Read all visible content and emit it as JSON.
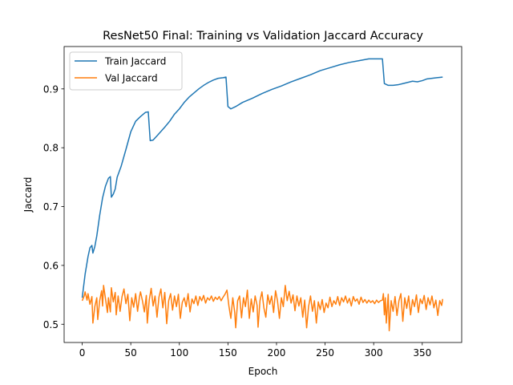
{
  "chart_data": {
    "type": "line",
    "title": "ResNet50 Final: Training vs Validation Jaccard Accuracy",
    "xlabel": "Epoch",
    "ylabel": "Jaccard",
    "xlim": [
      -18.6,
      390.6
    ],
    "ylim": [
      0.469,
      0.972
    ],
    "xticks": [
      0,
      50,
      100,
      150,
      200,
      250,
      300,
      350
    ],
    "yticks": [
      0.5,
      0.6,
      0.7,
      0.8,
      0.9
    ],
    "ytick_labels": [
      "0.5",
      "0.6",
      "0.7",
      "0.8",
      "0.9"
    ],
    "grid": false,
    "legend_position": "top-left",
    "series": [
      {
        "name": "Train Jaccard",
        "color": "#1f77b4",
        "points": [
          [
            0,
            0.545
          ],
          [
            3,
            0.585
          ],
          [
            6,
            0.615
          ],
          [
            8,
            0.63
          ],
          [
            10,
            0.634
          ],
          [
            11,
            0.621
          ],
          [
            13,
            0.632
          ],
          [
            15,
            0.65
          ],
          [
            18,
            0.685
          ],
          [
            21,
            0.715
          ],
          [
            24,
            0.735
          ],
          [
            27,
            0.748
          ],
          [
            29,
            0.751
          ],
          [
            30,
            0.716
          ],
          [
            32,
            0.721
          ],
          [
            34,
            0.73
          ],
          [
            36,
            0.75
          ],
          [
            40,
            0.768
          ],
          [
            45,
            0.797
          ],
          [
            50,
            0.827
          ],
          [
            55,
            0.845
          ],
          [
            60,
            0.853
          ],
          [
            65,
            0.86
          ],
          [
            68,
            0.861
          ],
          [
            70,
            0.812
          ],
          [
            73,
            0.813
          ],
          [
            78,
            0.822
          ],
          [
            85,
            0.835
          ],
          [
            90,
            0.845
          ],
          [
            95,
            0.857
          ],
          [
            100,
            0.866
          ],
          [
            105,
            0.877
          ],
          [
            110,
            0.886
          ],
          [
            115,
            0.893
          ],
          [
            120,
            0.9
          ],
          [
            125,
            0.906
          ],
          [
            130,
            0.911
          ],
          [
            135,
            0.915
          ],
          [
            140,
            0.918
          ],
          [
            145,
            0.919
          ],
          [
            148,
            0.92
          ],
          [
            150,
            0.87
          ],
          [
            153,
            0.866
          ],
          [
            158,
            0.87
          ],
          [
            165,
            0.877
          ],
          [
            175,
            0.884
          ],
          [
            185,
            0.892
          ],
          [
            195,
            0.899
          ],
          [
            205,
            0.905
          ],
          [
            215,
            0.912
          ],
          [
            225,
            0.918
          ],
          [
            235,
            0.924
          ],
          [
            245,
            0.931
          ],
          [
            255,
            0.936
          ],
          [
            265,
            0.941
          ],
          [
            275,
            0.945
          ],
          [
            285,
            0.948
          ],
          [
            295,
            0.951
          ],
          [
            305,
            0.951
          ],
          [
            309,
            0.951
          ],
          [
            311,
            0.909
          ],
          [
            315,
            0.906
          ],
          [
            320,
            0.906
          ],
          [
            325,
            0.907
          ],
          [
            330,
            0.909
          ],
          [
            335,
            0.911
          ],
          [
            340,
            0.913
          ],
          [
            345,
            0.912
          ],
          [
            350,
            0.914
          ],
          [
            355,
            0.917
          ],
          [
            360,
            0.918
          ],
          [
            365,
            0.919
          ],
          [
            371,
            0.92
          ]
        ]
      },
      {
        "name": "Val Jaccard",
        "color": "#ff7f0e",
        "points": [
          [
            0,
            0.54
          ],
          [
            2,
            0.548
          ],
          [
            3,
            0.555
          ],
          [
            5,
            0.541
          ],
          [
            6,
            0.552
          ],
          [
            8,
            0.534
          ],
          [
            10,
            0.547
          ],
          [
            11,
            0.502
          ],
          [
            13,
            0.53
          ],
          [
            15,
            0.545
          ],
          [
            16,
            0.508
          ],
          [
            18,
            0.54
          ],
          [
            20,
            0.557
          ],
          [
            21,
            0.531
          ],
          [
            22,
            0.566
          ],
          [
            24,
            0.543
          ],
          [
            26,
            0.52
          ],
          [
            27,
            0.545
          ],
          [
            29,
            0.521
          ],
          [
            30,
            0.562
          ],
          [
            32,
            0.538
          ],
          [
            34,
            0.554
          ],
          [
            35,
            0.516
          ],
          [
            37,
            0.548
          ],
          [
            39,
            0.522
          ],
          [
            41,
            0.547
          ],
          [
            43,
            0.56
          ],
          [
            45,
            0.535
          ],
          [
            47,
            0.551
          ],
          [
            49,
            0.506
          ],
          [
            51,
            0.545
          ],
          [
            53,
            0.529
          ],
          [
            55,
            0.552
          ],
          [
            57,
            0.522
          ],
          [
            59,
            0.547
          ],
          [
            60,
            0.555
          ],
          [
            62,
            0.54
          ],
          [
            64,
            0.521
          ],
          [
            66,
            0.549
          ],
          [
            67,
            0.502
          ],
          [
            69,
            0.541
          ],
          [
            71,
            0.561
          ],
          [
            73,
            0.531
          ],
          [
            75,
            0.548
          ],
          [
            77,
            0.512
          ],
          [
            79,
            0.546
          ],
          [
            81,
            0.56
          ],
          [
            83,
            0.528
          ],
          [
            85,
            0.554
          ],
          [
            87,
            0.501
          ],
          [
            89,
            0.54
          ],
          [
            91,
            0.552
          ],
          [
            93,
            0.524
          ],
          [
            95,
            0.548
          ],
          [
            97,
            0.53
          ],
          [
            99,
            0.551
          ],
          [
            101,
            0.51
          ],
          [
            103,
            0.537
          ],
          [
            105,
            0.545
          ],
          [
            107,
            0.53
          ],
          [
            109,
            0.552
          ],
          [
            111,
            0.521
          ],
          [
            113,
            0.543
          ],
          [
            115,
            0.535
          ],
          [
            117,
            0.548
          ],
          [
            119,
            0.532
          ],
          [
            121,
            0.547
          ],
          [
            123,
            0.54
          ],
          [
            125,
            0.549
          ],
          [
            127,
            0.536
          ],
          [
            129,
            0.545
          ],
          [
            131,
            0.541
          ],
          [
            133,
            0.548
          ],
          [
            135,
            0.539
          ],
          [
            137,
            0.546
          ],
          [
            139,
            0.542
          ],
          [
            141,
            0.547
          ],
          [
            143,
            0.54
          ],
          [
            145,
            0.546
          ],
          [
            147,
            0.551
          ],
          [
            149,
            0.558
          ],
          [
            151,
            0.531
          ],
          [
            153,
            0.51
          ],
          [
            155,
            0.545
          ],
          [
            157,
            0.52
          ],
          [
            158,
            0.494
          ],
          [
            160,
            0.54
          ],
          [
            162,
            0.548
          ],
          [
            164,
            0.511
          ],
          [
            166,
            0.545
          ],
          [
            168,
            0.53
          ],
          [
            170,
            0.558
          ],
          [
            172,
            0.51
          ],
          [
            174,
            0.543
          ],
          [
            176,
            0.521
          ],
          [
            178,
            0.548
          ],
          [
            180,
            0.532
          ],
          [
            181,
            0.495
          ],
          [
            183,
            0.54
          ],
          [
            185,
            0.555
          ],
          [
            187,
            0.528
          ],
          [
            189,
            0.512
          ],
          [
            191,
            0.55
          ],
          [
            193,
            0.534
          ],
          [
            195,
            0.548
          ],
          [
            197,
            0.52
          ],
          [
            199,
            0.557
          ],
          [
            201,
            0.54
          ],
          [
            203,
            0.51
          ],
          [
            205,
            0.545
          ],
          [
            207,
            0.53
          ],
          [
            209,
            0.566
          ],
          [
            211,
            0.54
          ],
          [
            213,
            0.556
          ],
          [
            215,
            0.536
          ],
          [
            217,
            0.55
          ],
          [
            219,
            0.523
          ],
          [
            221,
            0.548
          ],
          [
            223,
            0.531
          ],
          [
            225,
            0.545
          ],
          [
            227,
            0.512
          ],
          [
            229,
            0.541
          ],
          [
            231,
            0.494
          ],
          [
            233,
            0.53
          ],
          [
            235,
            0.548
          ],
          [
            237,
            0.522
          ],
          [
            239,
            0.54
          ],
          [
            241,
            0.502
          ],
          [
            243,
            0.538
          ],
          [
            245,
            0.525
          ],
          [
            247,
            0.542
          ],
          [
            249,
            0.52
          ],
          [
            251,
            0.536
          ],
          [
            253,
            0.528
          ],
          [
            255,
            0.546
          ],
          [
            257,
            0.53
          ],
          [
            259,
            0.54
          ],
          [
            261,
            0.534
          ],
          [
            263,
            0.547
          ],
          [
            265,
            0.532
          ],
          [
            267,
            0.545
          ],
          [
            269,
            0.538
          ],
          [
            271,
            0.548
          ],
          [
            273,
            0.536
          ],
          [
            275,
            0.544
          ],
          [
            277,
            0.531
          ],
          [
            279,
            0.547
          ],
          [
            281,
            0.539
          ],
          [
            283,
            0.543
          ],
          [
            285,
            0.534
          ],
          [
            287,
            0.546
          ],
          [
            289,
            0.537
          ],
          [
            291,
            0.542
          ],
          [
            293,
            0.536
          ],
          [
            295,
            0.541
          ],
          [
            297,
            0.537
          ],
          [
            299,
            0.54
          ],
          [
            301,
            0.535
          ],
          [
            303,
            0.541
          ],
          [
            305,
            0.537
          ],
          [
            307,
            0.54
          ],
          [
            309,
            0.541
          ],
          [
            310,
            0.552
          ],
          [
            311,
            0.516
          ],
          [
            312,
            0.545
          ],
          [
            313,
            0.502
          ],
          [
            315,
            0.551
          ],
          [
            316,
            0.489
          ],
          [
            318,
            0.54
          ],
          [
            320,
            0.522
          ],
          [
            322,
            0.547
          ],
          [
            324,
            0.515
          ],
          [
            326,
            0.54
          ],
          [
            328,
            0.552
          ],
          [
            330,
            0.505
          ],
          [
            332,
            0.545
          ],
          [
            334,
            0.527
          ],
          [
            336,
            0.548
          ],
          [
            338,
            0.516
          ],
          [
            340,
            0.542
          ],
          [
            342,
            0.53
          ],
          [
            344,
            0.55
          ],
          [
            346,
            0.52
          ],
          [
            348,
            0.543
          ],
          [
            350,
            0.535
          ],
          [
            352,
            0.549
          ],
          [
            354,
            0.525
          ],
          [
            356,
            0.545
          ],
          [
            358,
            0.533
          ],
          [
            360,
            0.548
          ],
          [
            362,
            0.528
          ],
          [
            364,
            0.541
          ],
          [
            366,
            0.515
          ],
          [
            368,
            0.54
          ],
          [
            370,
            0.532
          ],
          [
            371,
            0.543
          ]
        ]
      }
    ]
  }
}
